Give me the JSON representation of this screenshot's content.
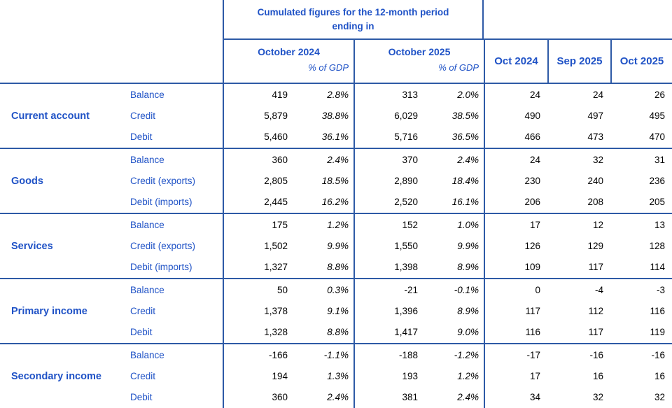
{
  "colors": {
    "border": "#2e5aa6",
    "text_blue": "#1f52c6"
  },
  "header": {
    "cumulated_title": "Cumulated figures for the 12-month period ending in",
    "period_columns": [
      {
        "label": "October 2024",
        "sublabel": "% of GDP"
      },
      {
        "label": "October 2025",
        "sublabel": "% of GDP"
      }
    ],
    "month_columns": [
      "Oct 2024",
      "Sep 2025",
      "Oct 2025"
    ]
  },
  "sections": [
    {
      "label": "Current account",
      "rows": [
        {
          "label": "Balance",
          "values": [
            "419",
            "2.8%",
            "313",
            "2.0%",
            "24",
            "24",
            "26"
          ]
        },
        {
          "label": "Credit",
          "values": [
            "5,879",
            "38.8%",
            "6,029",
            "38.5%",
            "490",
            "497",
            "495"
          ]
        },
        {
          "label": "Debit",
          "values": [
            "5,460",
            "36.1%",
            "5,716",
            "36.5%",
            "466",
            "473",
            "470"
          ]
        }
      ]
    },
    {
      "label": "Goods",
      "rows": [
        {
          "label": "Balance",
          "values": [
            "360",
            "2.4%",
            "370",
            "2.4%",
            "24",
            "32",
            "31"
          ]
        },
        {
          "label": "Credit (exports)",
          "values": [
            "2,805",
            "18.5%",
            "2,890",
            "18.4%",
            "230",
            "240",
            "236"
          ]
        },
        {
          "label": "Debit (imports)",
          "values": [
            "2,445",
            "16.2%",
            "2,520",
            "16.1%",
            "206",
            "208",
            "205"
          ]
        }
      ]
    },
    {
      "label": "Services",
      "rows": [
        {
          "label": "Balance",
          "values": [
            "175",
            "1.2%",
            "152",
            "1.0%",
            "17",
            "12",
            "13"
          ]
        },
        {
          "label": "Credit (exports)",
          "values": [
            "1,502",
            "9.9%",
            "1,550",
            "9.9%",
            "126",
            "129",
            "128"
          ]
        },
        {
          "label": "Debit (imports)",
          "values": [
            "1,327",
            "8.8%",
            "1,398",
            "8.9%",
            "109",
            "117",
            "114"
          ]
        }
      ]
    },
    {
      "label": "Primary income",
      "rows": [
        {
          "label": "Balance",
          "values": [
            "50",
            "0.3%",
            "-21",
            "-0.1%",
            "0",
            "-4",
            "-3"
          ]
        },
        {
          "label": "Credit",
          "values": [
            "1,378",
            "9.1%",
            "1,396",
            "8.9%",
            "117",
            "112",
            "116"
          ]
        },
        {
          "label": "Debit",
          "values": [
            "1,328",
            "8.8%",
            "1,417",
            "9.0%",
            "116",
            "117",
            "119"
          ]
        }
      ]
    },
    {
      "label": "Secondary income",
      "rows": [
        {
          "label": "Balance",
          "values": [
            "-166",
            "-1.1%",
            "-188",
            "-1.2%",
            "-17",
            "-16",
            "-16"
          ]
        },
        {
          "label": "Credit",
          "values": [
            "194",
            "1.3%",
            "193",
            "1.2%",
            "17",
            "16",
            "16"
          ]
        },
        {
          "label": "Debit",
          "values": [
            "360",
            "2.4%",
            "381",
            "2.4%",
            "34",
            "32",
            "32"
          ]
        }
      ]
    }
  ]
}
